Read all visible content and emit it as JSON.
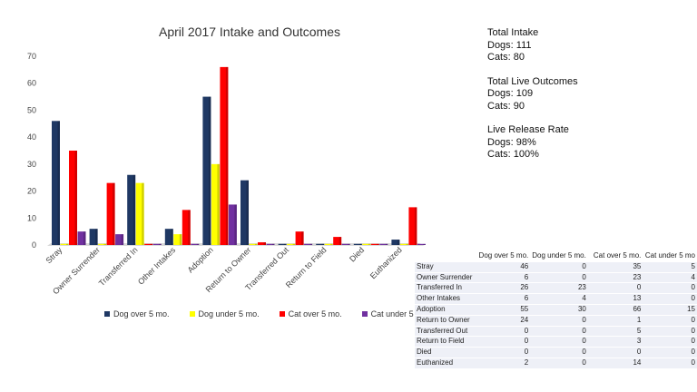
{
  "chart_data": {
    "type": "bar",
    "title": "April  2017 Intake and Outcomes",
    "categories": [
      "Stray",
      "Owner Surrender",
      "Transferred In",
      "Other Intakes",
      "Adoption",
      "Return to Owner",
      "Transferred Out",
      "Return to Field",
      "Died",
      "Euthanized"
    ],
    "series": [
      {
        "name": "Dog over 5 mo.",
        "color": "#1f3864",
        "values": [
          46,
          6,
          26,
          6,
          55,
          24,
          0,
          0,
          0,
          2
        ]
      },
      {
        "name": "Dog under 5 mo.",
        "color": "#ffff00",
        "values": [
          0,
          0,
          23,
          4,
          30,
          0,
          0,
          0,
          0,
          0
        ]
      },
      {
        "name": "Cat over 5 mo.",
        "color": "#ff0000",
        "values": [
          35,
          23,
          0,
          13,
          66,
          1,
          5,
          3,
          0,
          14
        ]
      },
      {
        "name": "Cat under 5 mo",
        "color": "#7030a0",
        "values": [
          5,
          4,
          0,
          0,
          15,
          0,
          0,
          0,
          0,
          0
        ]
      }
    ],
    "yticks": [
      0,
      10,
      20,
      30,
      40,
      50,
      60,
      70
    ],
    "ylim": [
      0,
      70
    ],
    "legend_position": "bottom",
    "grid": false
  },
  "stats": {
    "intake_title": "Total Intake",
    "intake_dogs": "Dogs: 111",
    "intake_cats": "Cats: 80",
    "live_title": "Total Live Outcomes",
    "live_dogs": "Dogs: 109",
    "live_cats": "Cats: 90",
    "rate_title": "Live Release Rate",
    "rate_dogs": "Dogs: 98%",
    "rate_cats": "Cats: 100%"
  },
  "table": {
    "headers": [
      "",
      "Dog over 5 mo.",
      "Dog under 5 mo.",
      "Cat over 5 mo.",
      "Cat under 5 mo"
    ],
    "rows": [
      [
        "Stray",
        "46",
        "0",
        "35",
        "5"
      ],
      [
        "Owner Surrender",
        "6",
        "0",
        "23",
        "4"
      ],
      [
        "Transferred In",
        "26",
        "23",
        "0",
        "0"
      ],
      [
        "Other Intakes",
        "6",
        "4",
        "13",
        "0"
      ],
      [
        "Adoption",
        "55",
        "30",
        "66",
        "15"
      ],
      [
        "Return to Owner",
        "24",
        "0",
        "1",
        "0"
      ],
      [
        "Transferred Out",
        "0",
        "0",
        "5",
        "0"
      ],
      [
        "Return to Field",
        "0",
        "0",
        "3",
        "0"
      ],
      [
        "Died",
        "0",
        "0",
        "0",
        "0"
      ],
      [
        "Euthanized",
        "2",
        "0",
        "14",
        "0"
      ]
    ]
  }
}
